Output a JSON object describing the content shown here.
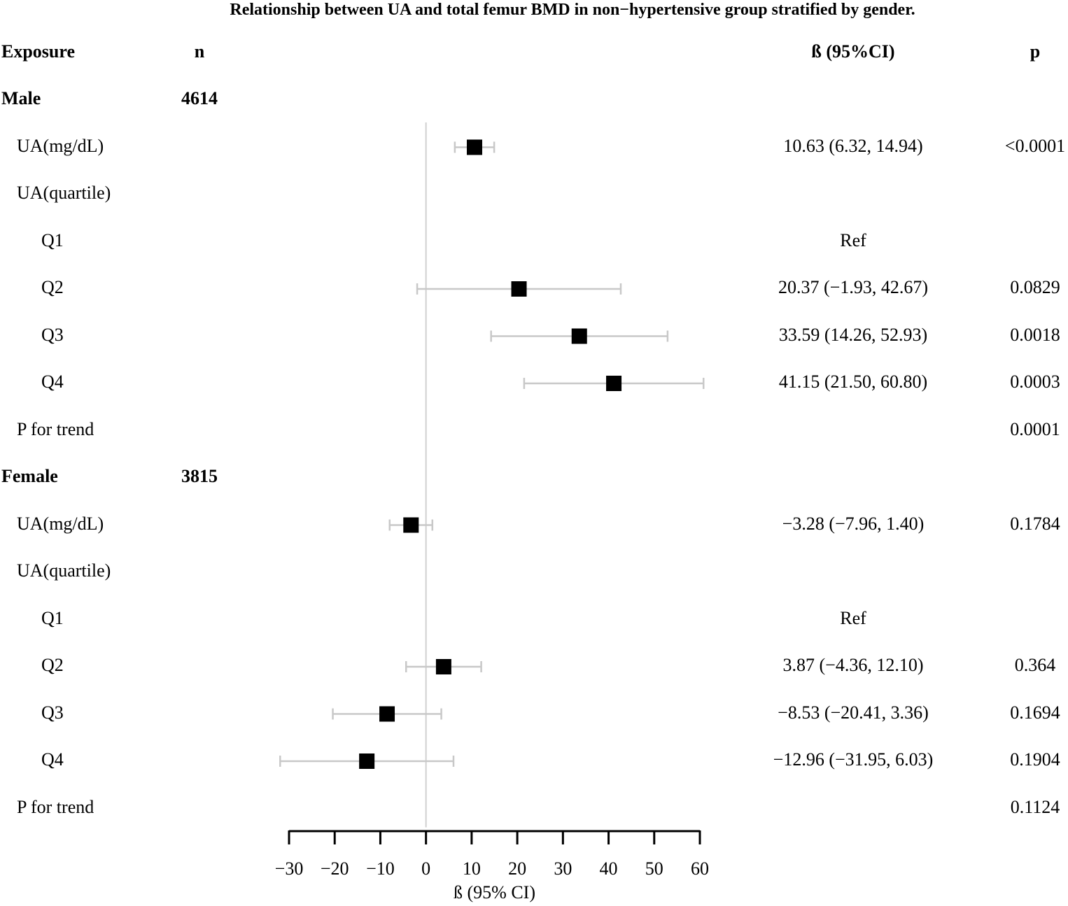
{
  "chart_data": {
    "type": "forest",
    "title": "Relationship between UA and total femur BMD in non−hypertensive group stratified by gender.",
    "columns": {
      "exposure": "Exposure",
      "n": "n",
      "beta": "ß (95%CI)",
      "p": "p"
    },
    "xlabel": "ß (95% CI)",
    "xlim": [
      -30,
      60
    ],
    "xticks": [
      -30,
      -20,
      -10,
      0,
      10,
      20,
      30,
      40,
      50,
      60
    ],
    "xtick_labels": [
      "−30",
      "−20",
      "−10",
      "0",
      "10",
      "20",
      "30",
      "40",
      "50",
      "60"
    ],
    "reference_line": 0,
    "rows": [
      {
        "label": "Male",
        "n": "4614",
        "bold": true,
        "indent": 0
      },
      {
        "label": "UA(mg/dL)",
        "indent": 1,
        "beta": 10.63,
        "lower": 6.32,
        "upper": 14.94,
        "ci_text": "10.63 (6.32, 14.94)",
        "p": "<0.0001"
      },
      {
        "label": "UA(quartile)",
        "indent": 1
      },
      {
        "label": "Q1",
        "indent": 2,
        "ci_text": "Ref"
      },
      {
        "label": "Q2",
        "indent": 2,
        "beta": 20.37,
        "lower": -1.93,
        "upper": 42.67,
        "ci_text": "20.37 (−1.93, 42.67)",
        "p": "0.0829"
      },
      {
        "label": "Q3",
        "indent": 2,
        "beta": 33.59,
        "lower": 14.26,
        "upper": 52.93,
        "ci_text": "33.59 (14.26, 52.93)",
        "p": "0.0018"
      },
      {
        "label": "Q4",
        "indent": 2,
        "beta": 41.15,
        "lower": 21.5,
        "upper": 60.8,
        "ci_text": "41.15 (21.50, 60.80)",
        "p": "0.0003"
      },
      {
        "label": "P for trend",
        "indent": 1,
        "p": "0.0001"
      },
      {
        "label": "Female",
        "n": "3815",
        "bold": true,
        "indent": 0
      },
      {
        "label": "UA(mg/dL)",
        "indent": 1,
        "beta": -3.28,
        "lower": -7.96,
        "upper": 1.4,
        "ci_text": "−3.28 (−7.96, 1.40)",
        "p": "0.1784"
      },
      {
        "label": "UA(quartile)",
        "indent": 1
      },
      {
        "label": "Q1",
        "indent": 2,
        "ci_text": "Ref"
      },
      {
        "label": "Q2",
        "indent": 2,
        "beta": 3.87,
        "lower": -4.36,
        "upper": 12.1,
        "ci_text": "3.87 (−4.36, 12.10)",
        "p": "0.364"
      },
      {
        "label": "Q3",
        "indent": 2,
        "beta": -8.53,
        "lower": -20.41,
        "upper": 3.36,
        "ci_text": "−8.53 (−20.41, 3.36)",
        "p": "0.1694"
      },
      {
        "label": "Q4",
        "indent": 2,
        "beta": -12.96,
        "lower": -31.95,
        "upper": 6.03,
        "ci_text": "−12.96 (−31.95, 6.03)",
        "p": "0.1904"
      },
      {
        "label": "P for trend",
        "indent": 1,
        "p": "0.1124"
      }
    ]
  }
}
